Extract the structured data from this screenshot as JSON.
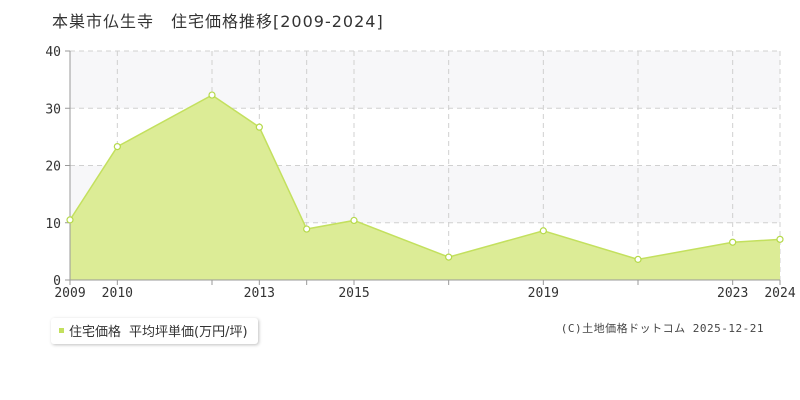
{
  "chart_data": {
    "type": "area",
    "title": "本巣市仏生寺　住宅価格推移[2009-2024]",
    "x": [
      2009,
      2010,
      2012,
      2013,
      2014,
      2015,
      2017,
      2019,
      2021,
      2023,
      2024
    ],
    "series": [
      {
        "name": "住宅価格",
        "values": [
          10.5,
          23.3,
          32.3,
          26.7,
          8.9,
          10.4,
          4.0,
          8.6,
          3.6,
          6.6,
          7.1
        ]
      }
    ],
    "xticks": [
      2009,
      2010,
      2013,
      2015,
      2019,
      2023,
      2024
    ],
    "yticks": [
      0,
      10,
      20,
      30,
      40
    ],
    "xlim": [
      2009,
      2024
    ],
    "ylim": [
      0,
      40
    ],
    "grid": true,
    "legend_position": "bottom-left",
    "legend_unit": "平均坪単価(万円/坪)",
    "colors": {
      "fill": "#dcec96",
      "line": "#c3e05e",
      "marker_edge": "#b5d94a",
      "band": "#f7f7f9",
      "grid": "#d0d0d0",
      "axis": "#999999",
      "tick_label": "#333333"
    }
  },
  "footer": {
    "copyright": "(C)土地価格ドットコム 2025-12-21"
  }
}
